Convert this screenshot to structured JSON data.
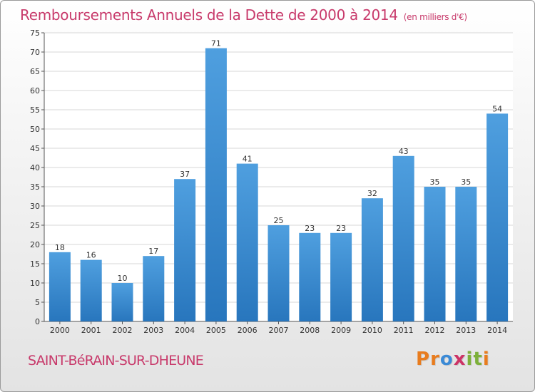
{
  "title": "Remboursements Annuels de la Dette de 2000 à 2014",
  "subtitle": "(en milliers d'€)",
  "commune": "SAINT-BéRAIN-SUR-DHEUNE",
  "logo": {
    "letters": [
      "P",
      "r",
      "o",
      "x",
      "i",
      "t",
      "i"
    ],
    "colors": [
      "#e87c1e",
      "#e87c1e",
      "#3b8ad6",
      "#cc3366",
      "#7db03a",
      "#7db03a",
      "#e87c1e"
    ]
  },
  "colors": {
    "bar": "#4f9fdf",
    "bar_dark": "#2876bd",
    "grid": "#d7d7d7"
  },
  "chart_data": {
    "type": "bar",
    "categories": [
      "2000",
      "2001",
      "2002",
      "2003",
      "2004",
      "2005",
      "2006",
      "2007",
      "2008",
      "2009",
      "2010",
      "2011",
      "2012",
      "2013",
      "2014"
    ],
    "values": [
      18,
      16,
      10,
      17,
      37,
      71,
      41,
      25,
      23,
      23,
      32,
      43,
      35,
      35,
      54
    ],
    "ylim": [
      0,
      75
    ],
    "yticks": [
      0,
      5,
      10,
      15,
      20,
      25,
      30,
      35,
      40,
      45,
      50,
      55,
      60,
      65,
      70,
      75
    ],
    "grid": true,
    "data_labels": true
  }
}
